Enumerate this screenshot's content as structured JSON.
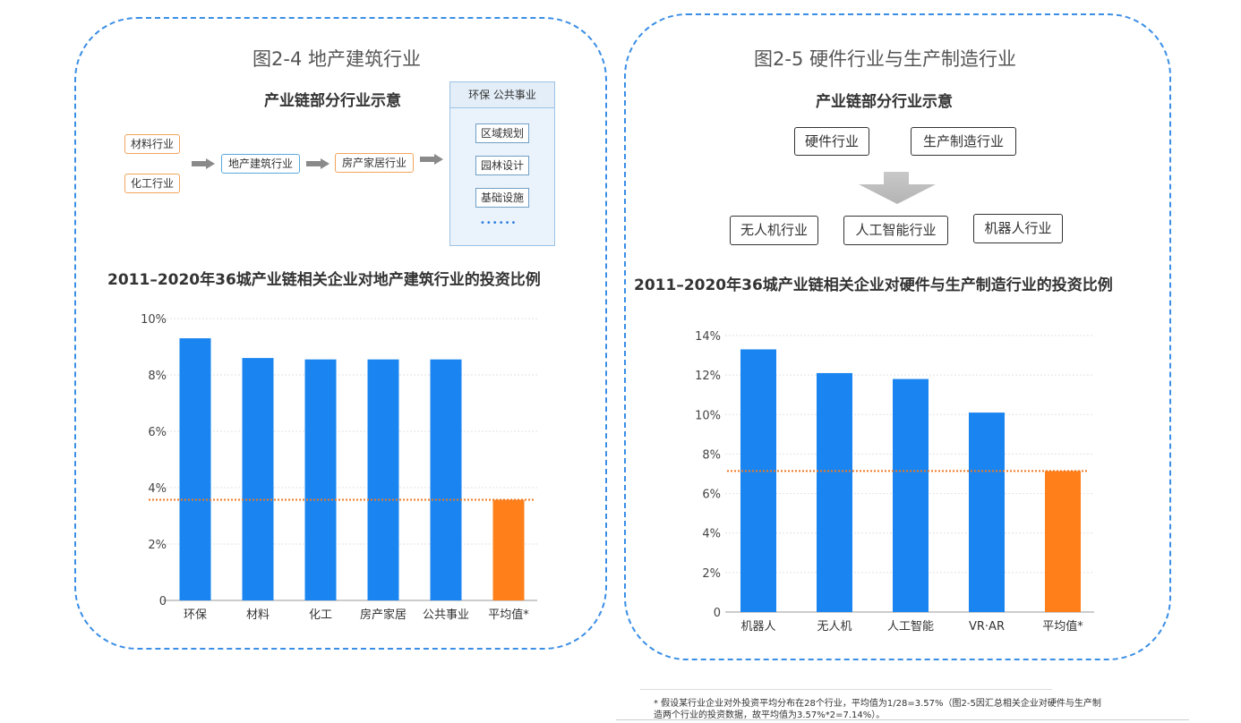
{
  "left": {
    "figure_title": "图2-4 地产建筑行业",
    "diagram_title": "产业链部分行业示意",
    "inputs": [
      "材料行业",
      "化工行业"
    ],
    "middle": "地产建筑行业",
    "downstream": "房产家居行业",
    "env_group": {
      "header": "环保 公共事业",
      "items": [
        "区域规划",
        "园林设计",
        "基础设施"
      ],
      "dots": "••••••"
    },
    "chart_title": "2011–2020年36城产业链相关企业对地产建筑行业的投资比例"
  },
  "right": {
    "figure_title": "图2-5 硬件行业与生产制造行业",
    "diagram_title": "产业链部分行业示意",
    "top_boxes": [
      "硬件行业",
      "生产制造行业"
    ],
    "bottom_boxes": [
      "无人机行业",
      "人工智能行业",
      "机器人行业"
    ],
    "chart_title": "2011–2020年36城产业链相关企业对硬件与生产制造行业的投资比例"
  },
  "footnote": {
    "line1": "* 假设某行业企业对外投资平均分布在28个行业，平均值为1/28=3.57%（图2-5因汇总相关企业对硬件与生产制",
    "line2": "造两个行业的投资数据，故平均值为3.57%*2=7.14%）。"
  },
  "colors": {
    "bar": "#1a85f0",
    "average_bar": "#ff7f1a",
    "average_line": "#f07820",
    "panel_border": "#3a8ee6"
  },
  "chart_data": [
    {
      "type": "bar",
      "title": "2011–2020年36城产业链相关企业对地产建筑行业的投资比例",
      "categories": [
        "环保",
        "材料",
        "化工",
        "房产家居",
        "公共事业",
        "平均值*"
      ],
      "values": [
        9.3,
        8.6,
        8.55,
        8.55,
        8.55,
        3.57
      ],
      "y_ticks": [
        "0",
        "2%",
        "4%",
        "6%",
        "8%",
        "10%"
      ],
      "ylim": [
        0,
        10
      ],
      "average_line": 3.57,
      "highlight_index": 5,
      "grid": true,
      "xlabel": "",
      "ylabel": ""
    },
    {
      "type": "bar",
      "title": "2011–2020年36城产业链相关企业对硬件与生产制造行业的投资比例",
      "categories": [
        "机器人",
        "无人机",
        "人工智能",
        "VR·AR",
        "平均值*"
      ],
      "values": [
        13.3,
        12.1,
        11.8,
        10.1,
        7.14
      ],
      "y_ticks": [
        "0",
        "2%",
        "4%",
        "6%",
        "8%",
        "10%",
        "12%",
        "14%"
      ],
      "ylim": [
        0,
        14
      ],
      "average_line": 7.14,
      "highlight_index": 4,
      "grid": true,
      "xlabel": "",
      "ylabel": ""
    }
  ]
}
